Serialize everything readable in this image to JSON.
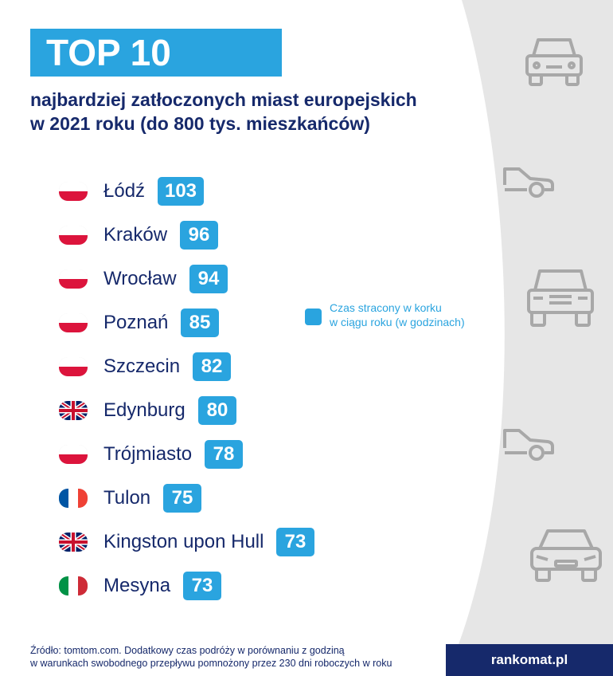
{
  "title": "TOP 10",
  "subtitle_line1": "najbardziej zatłoczonych miast europejskich",
  "subtitle_line2": "w 2021 roku (do 800 tys. mieszkańców)",
  "legend": {
    "line1": "Czas stracony w korku",
    "line2": "w ciągu roku (w godzinach)",
    "color": "#2aa4df"
  },
  "source_line1": "Źródło: tomtom.com. Dodatkowy czas podróży w porównaniu z godziną",
  "source_line2": "w warunkach swobodnego przepływu pomnożony przez 230 dni roboczych w roku",
  "brand": "rankomat.pl",
  "colors": {
    "accent": "#2aa4df",
    "navy": "#16296b",
    "grey": "#e6e6e6"
  },
  "chart_data": {
    "type": "bar",
    "categories": [
      "Łódź",
      "Kraków",
      "Wrocław",
      "Poznań",
      "Szczecin",
      "Edynburg",
      "Trójmiasto",
      "Tulon",
      "Kingston upon Hull",
      "Mesyna"
    ],
    "values": [
      103,
      96,
      94,
      85,
      82,
      80,
      78,
      75,
      73,
      73
    ],
    "flags": [
      "poland",
      "poland",
      "poland",
      "poland",
      "poland",
      "uk",
      "poland",
      "france",
      "uk",
      "italy"
    ]
  }
}
